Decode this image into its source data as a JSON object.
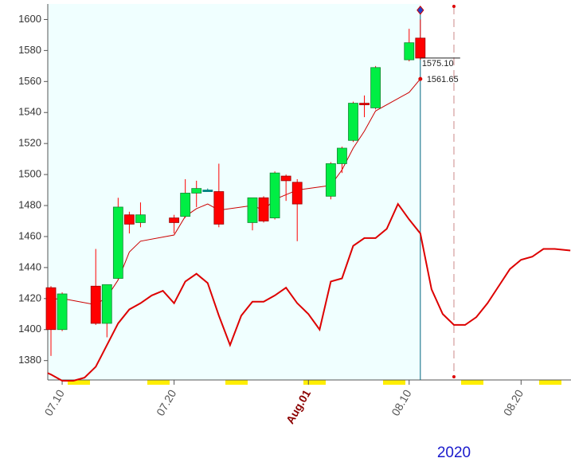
{
  "chart_data": {
    "type": "candlestick",
    "xlim": [
      8.715,
      55.46
    ],
    "ylim": [
      1367.5,
      1610
    ],
    "yticks": [
      1380,
      1400,
      1420,
      1440,
      1460,
      1480,
      1500,
      1520,
      1540,
      1560,
      1580,
      1600
    ],
    "xticks": [
      {
        "value": 10,
        "label": "07.10"
      },
      {
        "value": 20,
        "label": "07.20"
      },
      {
        "value": 32,
        "label": "Aug.01"
      },
      {
        "value": 41,
        "label": "08.10"
      },
      {
        "value": 51,
        "label": "08.20"
      }
    ],
    "up_color": "#00ee44",
    "down_color": "#ff0000",
    "flat_color": "#008080",
    "candles": {
      "x": [
        9,
        10,
        13,
        14,
        15,
        16,
        17,
        20,
        21,
        22,
        23,
        24,
        27,
        28,
        29,
        30,
        31,
        34,
        35,
        36,
        37,
        38,
        41,
        42
      ],
      "open": [
        1427,
        1400,
        1428,
        1404,
        1433,
        1474,
        1469,
        1472,
        1473,
        1488,
        1490,
        1489,
        1469,
        1485,
        1472,
        1499,
        1495,
        1486,
        1507,
        1522,
        1546,
        1543,
        1574,
        1588
      ],
      "high": [
        1428,
        1424,
        1452,
        1429,
        1485,
        1476,
        1482,
        1474,
        1497,
        1496,
        1491,
        1507,
        1485,
        1486,
        1502,
        1500,
        1497,
        1508,
        1518,
        1547,
        1551,
        1570,
        1594,
        1600
      ],
      "low": [
        1383,
        1399,
        1403,
        1395,
        1432,
        1462,
        1466,
        1462,
        1472,
        1479,
        1489,
        1466,
        1464,
        1469,
        1471,
        1483,
        1457,
        1484,
        1501,
        1521,
        1537,
        1542,
        1573,
        1574
      ],
      "close": [
        1400,
        1423,
        1404,
        1429,
        1479,
        1468,
        1474,
        1469,
        1488,
        1491,
        1490,
        1468,
        1485,
        1470,
        1501,
        1496,
        1481,
        1507,
        1517,
        1546,
        1545,
        1569,
        1585,
        1575.1
      ]
    },
    "lines": [
      {
        "color": "#cc0000",
        "width": 1,
        "x": [
          9,
          10,
          13,
          14,
          15,
          16,
          17,
          20,
          21,
          22,
          23,
          24,
          27,
          28,
          29,
          30,
          31,
          34,
          35,
          36,
          37,
          38,
          41,
          42
        ],
        "values": [
          1419.5,
          1420,
          1416,
          1421,
          1432,
          1450,
          1457,
          1461,
          1473,
          1478,
          1481,
          1477,
          1480,
          1477,
          1484,
          1487,
          1490,
          1493,
          1503,
          1517,
          1528,
          1541,
          1553,
          1561.65
        ]
      },
      {
        "color": "#dd0000",
        "width": 2,
        "x": [
          8.7,
          9,
          10,
          11,
          12,
          13,
          14,
          15,
          16,
          17,
          18,
          19,
          20,
          21,
          22,
          23,
          24,
          25,
          26,
          27,
          28,
          29,
          30,
          31,
          32,
          33,
          34,
          35,
          36,
          37,
          38,
          39,
          40,
          41,
          42,
          43,
          44,
          45,
          46,
          47,
          48,
          49,
          50,
          51,
          52,
          53,
          54,
          55.4
        ],
        "values": [
          1372,
          1371,
          1367,
          1367,
          1369,
          1376,
          1390,
          1404,
          1413,
          1417,
          1422,
          1425,
          1417,
          1431,
          1436,
          1430,
          1409,
          1390,
          1409,
          1418,
          1418,
          1422,
          1427,
          1417,
          1410,
          1400,
          1431,
          1433,
          1454,
          1459,
          1459,
          1465,
          1481,
          1471,
          1462,
          1426,
          1410,
          1403,
          1403,
          1408,
          1417,
          1428,
          1439,
          1445,
          1447,
          1452,
          1452,
          1451
        ]
      }
    ],
    "cursor_x": 42,
    "projection_x": 45,
    "marker": {
      "x": 42,
      "y": 1606
    },
    "annotations": [
      {
        "x": 42,
        "value": 1575.1,
        "label": "1575.10"
      },
      {
        "x": 42,
        "value": 1561.65,
        "label": "1561.65"
      }
    ],
    "year_label": "2020"
  }
}
